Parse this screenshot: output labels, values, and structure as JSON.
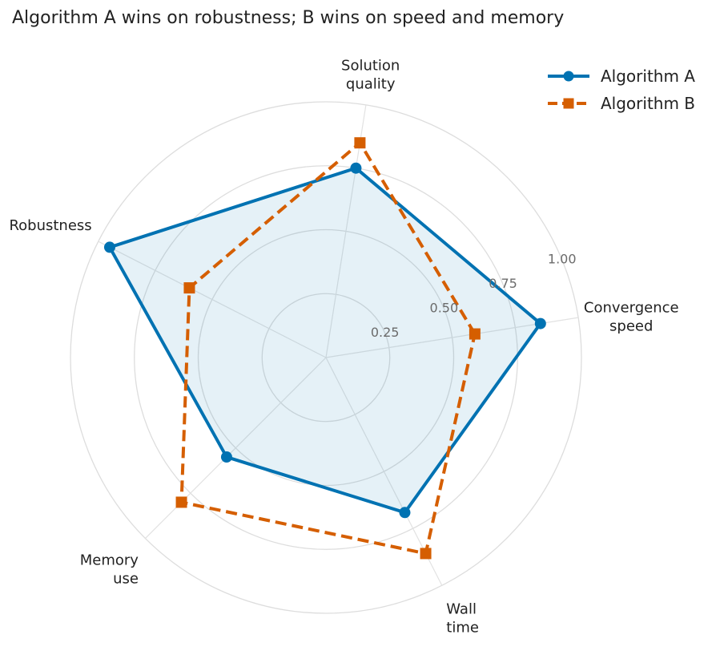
{
  "chart_data": {
    "type": "radar",
    "title": "Algorithm A wins on robustness; B wins on speed and memory",
    "axes": [
      [
        "Convergence",
        "speed"
      ],
      [
        "Solution",
        "quality"
      ],
      [
        "Robustness"
      ],
      [
        "Memory",
        "use"
      ],
      [
        "Wall",
        "time"
      ]
    ],
    "rlim": [
      0,
      1
    ],
    "ticks": [
      {
        "value": 0.25,
        "label": "0.25"
      },
      {
        "value": 0.5,
        "label": "0.50"
      },
      {
        "value": 0.75,
        "label": "0.75"
      },
      {
        "value": 1.0,
        "label": "1.00"
      }
    ],
    "grid": true,
    "legend_position": "top-right",
    "series": [
      {
        "name": "Algorithm A",
        "values": [
          0.85,
          0.75,
          0.95,
          0.55,
          0.68
        ],
        "color": "#0072b2",
        "marker": "circle",
        "linestyle": "solid",
        "fill": true
      },
      {
        "name": "Algorithm B",
        "values": [
          0.59,
          0.85,
          0.6,
          0.8,
          0.86
        ],
        "color": "#d55e00",
        "marker": "square",
        "linestyle": "dashed",
        "fill": false
      }
    ]
  }
}
